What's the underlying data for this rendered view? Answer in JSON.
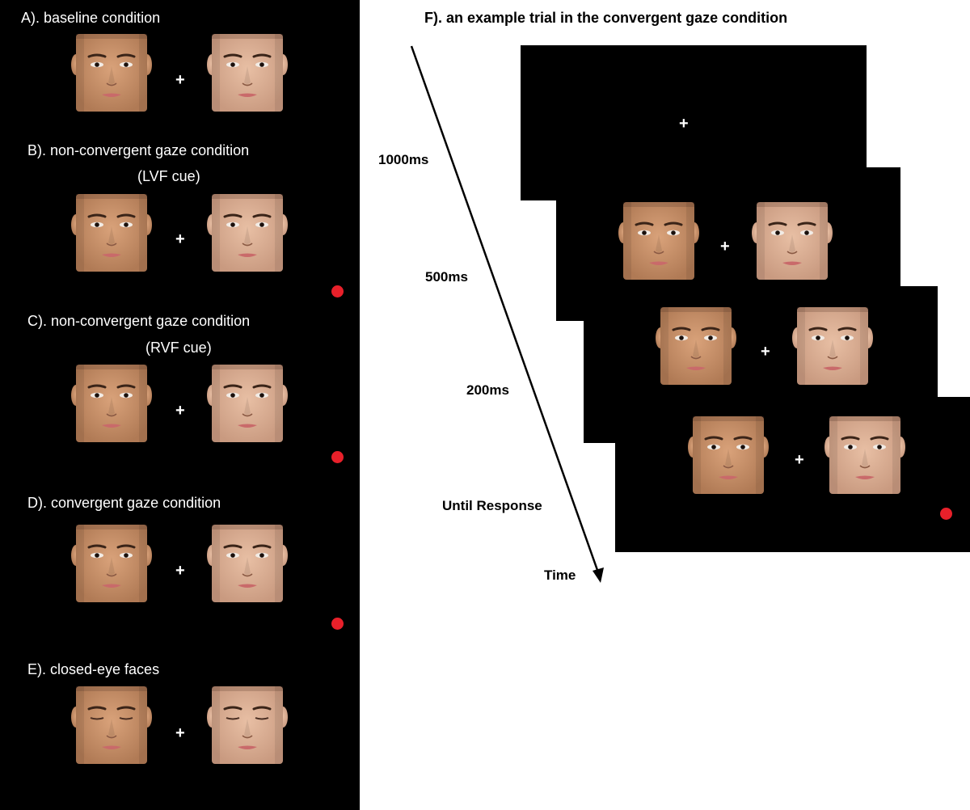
{
  "left_panel": {
    "conditions": [
      {
        "label": "A). baseline condition",
        "sublabel": "",
        "cue_dot": false
      },
      {
        "label": "B). non-convergent gaze condition",
        "sublabel": "(LVF cue)",
        "cue_dot": true
      },
      {
        "label": "C). non-convergent gaze condition",
        "sublabel": "(RVF cue)",
        "cue_dot": true
      },
      {
        "label": "D). convergent gaze condition",
        "sublabel": "",
        "cue_dot": true
      },
      {
        "label": "E). closed-eye faces",
        "sublabel": "",
        "cue_dot": false
      }
    ],
    "fixation": "+"
  },
  "trial": {
    "title": "F). an example trial in the convergent gaze condition",
    "durations": [
      "1000ms",
      "500ms",
      "200ms",
      "Until Response"
    ],
    "axis_label": "Time",
    "fixation": "+"
  },
  "colors": {
    "panel_bg": "#000000",
    "cue_dot": "#e8202a",
    "skin_left": "#d9a27a",
    "skin_right": "#e8bfa4"
  },
  "icons": [
    "face-image",
    "fixation-cross",
    "red-cue-dot",
    "time-arrow"
  ]
}
